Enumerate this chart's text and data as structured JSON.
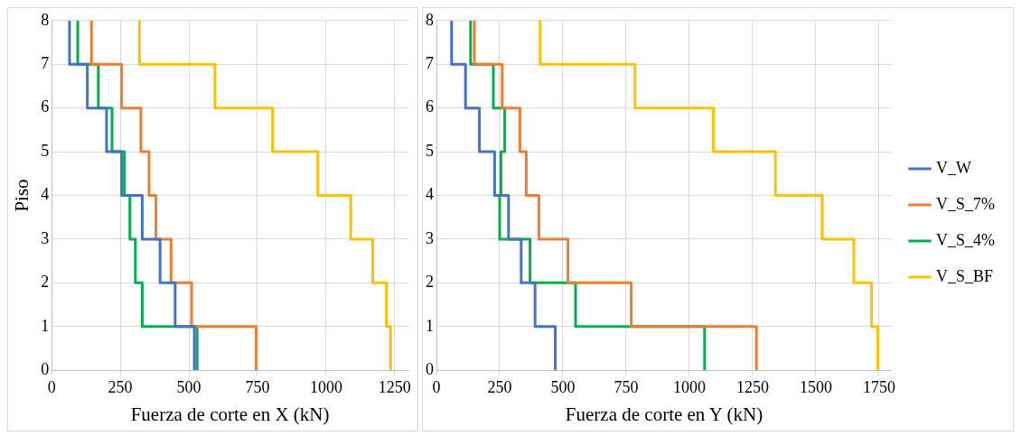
{
  "chart_data": [
    {
      "type": "line",
      "xlabel": "Fuerza de corte en X (kN)",
      "ylabel": "Piso",
      "xlim": [
        0,
        1300
      ],
      "xticks": [
        0,
        250,
        500,
        750,
        1000,
        1250
      ],
      "ylim": [
        0,
        8
      ],
      "yticks": [
        0,
        1,
        2,
        3,
        4,
        5,
        6,
        7,
        8
      ],
      "grid": true,
      "legend": false,
      "marker": "none",
      "line_style": "solid",
      "series": [
        {
          "color": "#4472c4",
          "x": [
            520,
            520,
            450,
            450,
            395,
            395,
            330,
            330,
            255,
            255,
            200,
            200,
            130,
            130,
            65,
            65
          ],
          "values": [
            0,
            1,
            1,
            2,
            2,
            3,
            3,
            4,
            4,
            5,
            5,
            6,
            6,
            7,
            7,
            8
          ]
        },
        {
          "color": "#ed7d31",
          "x": [
            745,
            745,
            510,
            510,
            435,
            435,
            380,
            380,
            355,
            355,
            325,
            325,
            255,
            255,
            145,
            145
          ],
          "values": [
            0,
            1,
            1,
            2,
            2,
            3,
            3,
            4,
            4,
            5,
            5,
            6,
            6,
            7,
            7,
            8
          ]
        },
        {
          "color": "#00b050",
          "x": [
            530,
            530,
            330,
            330,
            305,
            305,
            285,
            285,
            265,
            265,
            220,
            220,
            170,
            170,
            95,
            95
          ],
          "values": [
            0,
            1,
            1,
            2,
            2,
            3,
            3,
            4,
            4,
            5,
            5,
            6,
            6,
            7,
            7,
            8
          ]
        },
        {
          "color": "#ffc000",
          "x": [
            1235,
            1235,
            1220,
            1220,
            1170,
            1170,
            1090,
            1090,
            970,
            970,
            805,
            805,
            595,
            595,
            320,
            320
          ],
          "values": [
            0,
            1,
            1,
            2,
            2,
            3,
            3,
            4,
            4,
            5,
            5,
            6,
            6,
            7,
            7,
            8
          ]
        }
      ]
    },
    {
      "type": "line",
      "xlabel": "Fuerza de corte en Y (kN)",
      "xlim": [
        0,
        1800
      ],
      "xticks": [
        0,
        250,
        500,
        750,
        1000,
        1250,
        1500,
        1750
      ],
      "ylim": [
        0,
        8
      ],
      "yticks": [
        0,
        1,
        2,
        3,
        4,
        5,
        6,
        7,
        8
      ],
      "grid": true,
      "legend": "right",
      "marker": "none",
      "line_style": "solid",
      "series": [
        {
          "name": "V_W",
          "color": "#4472c4",
          "x": [
            470,
            470,
            390,
            390,
            335,
            335,
            285,
            285,
            230,
            230,
            170,
            170,
            115,
            115,
            60,
            60
          ],
          "values": [
            0,
            1,
            1,
            2,
            2,
            3,
            3,
            4,
            4,
            5,
            5,
            6,
            6,
            7,
            7,
            8
          ]
        },
        {
          "name": "V_S_7%",
          "color": "#ed7d31",
          "x": [
            1265,
            1265,
            770,
            770,
            520,
            520,
            405,
            405,
            355,
            355,
            330,
            330,
            260,
            260,
            150,
            150
          ],
          "values": [
            0,
            1,
            1,
            2,
            2,
            3,
            3,
            4,
            4,
            5,
            5,
            6,
            6,
            7,
            7,
            8
          ]
        },
        {
          "name": "V_S_4%",
          "color": "#00b050",
          "x": [
            1060,
            1060,
            550,
            550,
            370,
            370,
            250,
            250,
            255,
            255,
            270,
            270,
            225,
            225,
            135,
            135
          ],
          "values": [
            0,
            1,
            1,
            2,
            2,
            3,
            3,
            4,
            4,
            5,
            5,
            6,
            6,
            7,
            7,
            8
          ]
        },
        {
          "name": "V_S_BF",
          "color": "#ffc000",
          "x": [
            1745,
            1745,
            1720,
            1720,
            1650,
            1650,
            1525,
            1525,
            1340,
            1340,
            1095,
            1095,
            785,
            785,
            410,
            410
          ],
          "values": [
            0,
            1,
            1,
            2,
            2,
            3,
            3,
            4,
            4,
            5,
            5,
            6,
            6,
            7,
            7,
            8
          ]
        }
      ]
    }
  ]
}
